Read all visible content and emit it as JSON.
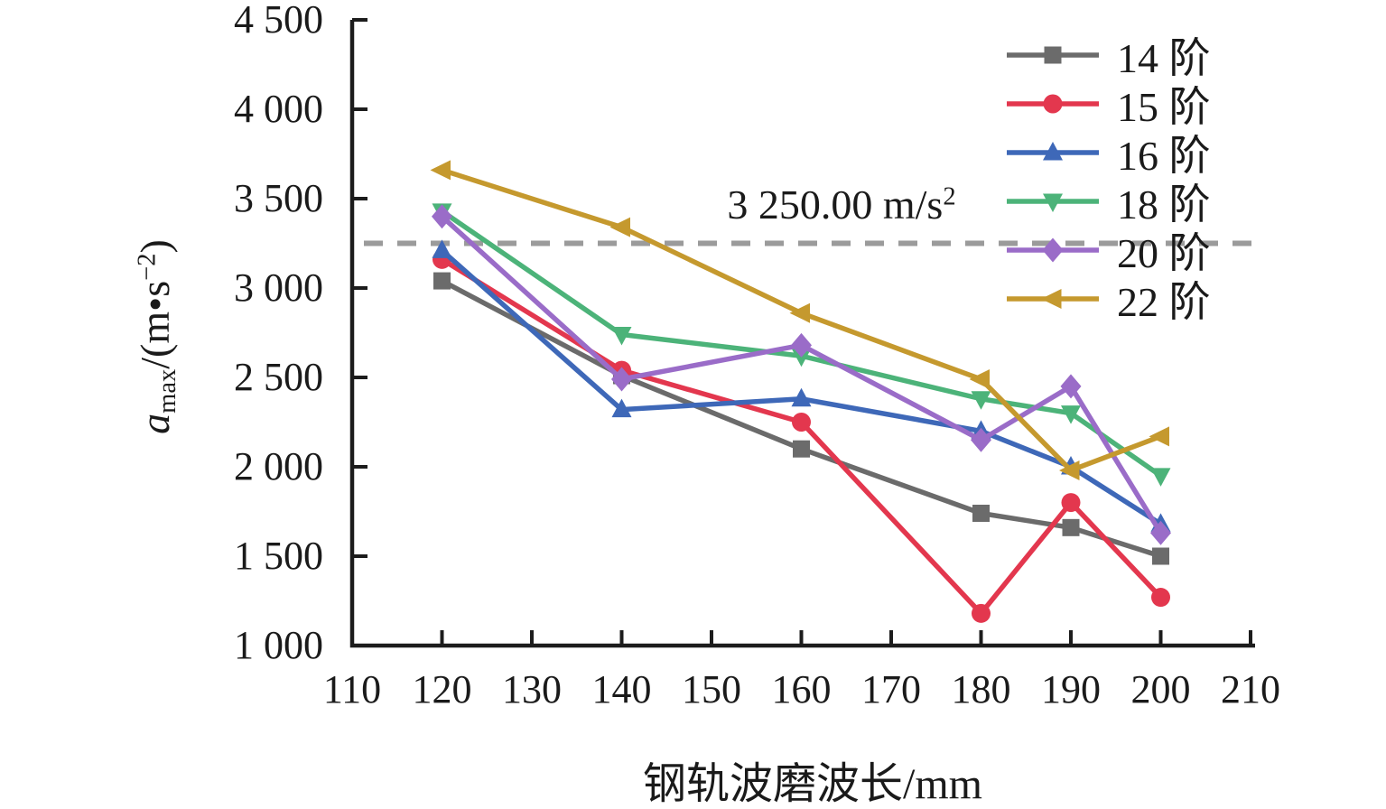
{
  "figure_title": "rail corrugation wavelength vs max acceleration by modal order",
  "axes": {
    "ylabel_var": "a",
    "ylabel_sub": "max",
    "ylabel_pre": "/(m•s",
    "ylabel_sup": "−2",
    "ylabel_post": ")",
    "xlabel": "钢轨波磨波长/mm"
  },
  "chart_data": {
    "type": "line",
    "x": [
      120,
      140,
      160,
      180,
      190,
      200
    ],
    "series": [
      {
        "name": "14 阶",
        "color": "#6b6b6b",
        "marker": "square",
        "values": [
          3040,
          2510,
          2100,
          1740,
          1660,
          1500
        ]
      },
      {
        "name": "15 阶",
        "color": "#e3374e",
        "marker": "circle",
        "values": [
          3160,
          2540,
          2250,
          1180,
          1800,
          1270
        ]
      },
      {
        "name": "16 阶",
        "color": "#3e68b8",
        "marker": "triangle-up",
        "values": [
          3210,
          2320,
          2380,
          2200,
          2000,
          1680
        ]
      },
      {
        "name": "18 阶",
        "color": "#4cb379",
        "marker": "triangle-down",
        "values": [
          3430,
          2740,
          2620,
          2380,
          2300,
          1950
        ]
      },
      {
        "name": "20 阶",
        "color": "#9a6cc8",
        "marker": "diamond",
        "values": [
          3400,
          2490,
          2680,
          2150,
          2450,
          1630
        ]
      },
      {
        "name": "22 阶",
        "color": "#c5992e",
        "marker": "triangle-left",
        "values": [
          3660,
          3340,
          2860,
          2490,
          1980,
          2170
        ]
      }
    ],
    "xlabel": "钢轨波磨波长/mm",
    "ylabel": "a_max/(m·s⁻²)",
    "xlim": [
      110,
      210
    ],
    "ylim": [
      1000,
      4500
    ],
    "x_ticks": [
      110,
      120,
      130,
      140,
      150,
      160,
      170,
      180,
      190,
      200,
      210
    ],
    "x_tick_labels": [
      "110",
      "120",
      "130",
      "140",
      "150",
      "160",
      "170",
      "180",
      "190",
      "200",
      "210"
    ],
    "y_ticks": [
      1000,
      1500,
      2000,
      2500,
      3000,
      3500,
      4000,
      4500
    ],
    "y_tick_labels": [
      "1 000",
      "1 500",
      "2 000",
      "2 500",
      "3 000",
      "3 500",
      "4 000",
      "4 500"
    ],
    "reference_line": {
      "value": 3250,
      "label_text": "3 250.00 m/s",
      "label_sup": "2",
      "style": "dashed",
      "color": "#9b9b9b"
    },
    "legend_position": "top-right",
    "grid": false
  }
}
